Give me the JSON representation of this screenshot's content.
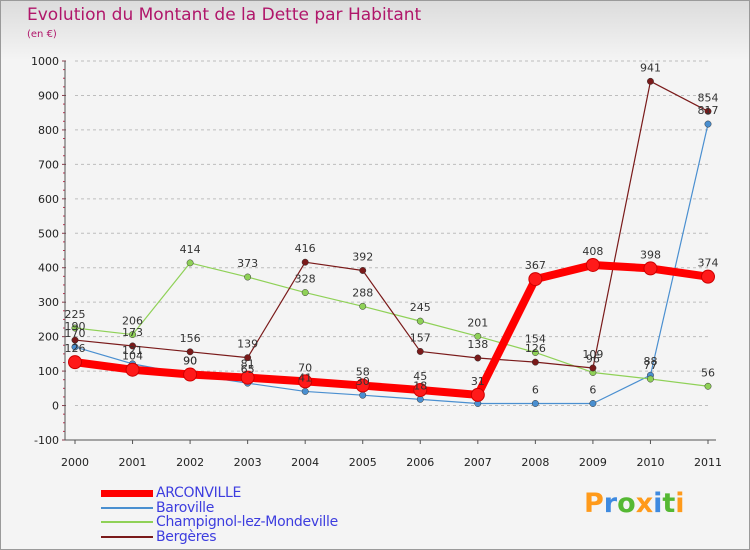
{
  "header": {
    "title": "Evolution du Montant de la Dette par Habitant",
    "subtitle": "(en €)"
  },
  "logo": {
    "text": "Proxiti",
    "letter_colors": [
      "#ff9a1a",
      "#3e8ae0",
      "#55b833",
      "#ff9a1a",
      "#3e8ae0",
      "#55b833",
      "#ff9a1a"
    ]
  },
  "chart_data": {
    "type": "line",
    "x": [
      "2000",
      "2001",
      "2002",
      "2003",
      "2004",
      "2005",
      "2006",
      "2007",
      "2008",
      "2009",
      "2010",
      "2011"
    ],
    "ylim": [
      -100,
      1000
    ],
    "yticks": [
      -100,
      0,
      100,
      200,
      300,
      400,
      500,
      600,
      700,
      800,
      900,
      1000
    ],
    "grid": "horizontal dashed",
    "legend_position": "bottom-left",
    "series": [
      {
        "name": "ARCONVILLE",
        "color": "#ff0000",
        "values": [
          126,
          104,
          90,
          81,
          70,
          58,
          45,
          31,
          367,
          408,
          398,
          374
        ],
        "labels": [
          "126",
          "104",
          "90",
          "81",
          "70",
          "58",
          "45",
          "31",
          "367",
          "408",
          "398",
          "374"
        ]
      },
      {
        "name": "Baroville",
        "color": "#4a8fd0",
        "values": [
          170,
          121,
          90,
          65,
          41,
          30,
          18,
          6,
          6,
          6,
          88,
          817
        ],
        "labels": [
          "170",
          "121",
          "90",
          "65",
          "41",
          "30",
          "18",
          "",
          "6",
          "6",
          "88",
          "817"
        ]
      },
      {
        "name": "Champignol-lez-Mondeville",
        "color": "#8fd157",
        "values": [
          225,
          206,
          414,
          373,
          328,
          288,
          245,
          201,
          154,
          96,
          77,
          56
        ],
        "labels": [
          "225",
          "206",
          "414",
          "373",
          "328",
          "288",
          "245",
          "201",
          "154",
          "96",
          "77",
          "56"
        ]
      },
      {
        "name": "Bergères",
        "color": "#7a1a1a",
        "values": [
          190,
          173,
          156,
          139,
          416,
          392,
          157,
          138,
          126,
          109,
          941,
          854
        ],
        "labels": [
          "190",
          "173",
          "156",
          "139",
          "416",
          "392",
          "157",
          "138",
          "126",
          "109",
          "941",
          "854"
        ]
      }
    ]
  }
}
